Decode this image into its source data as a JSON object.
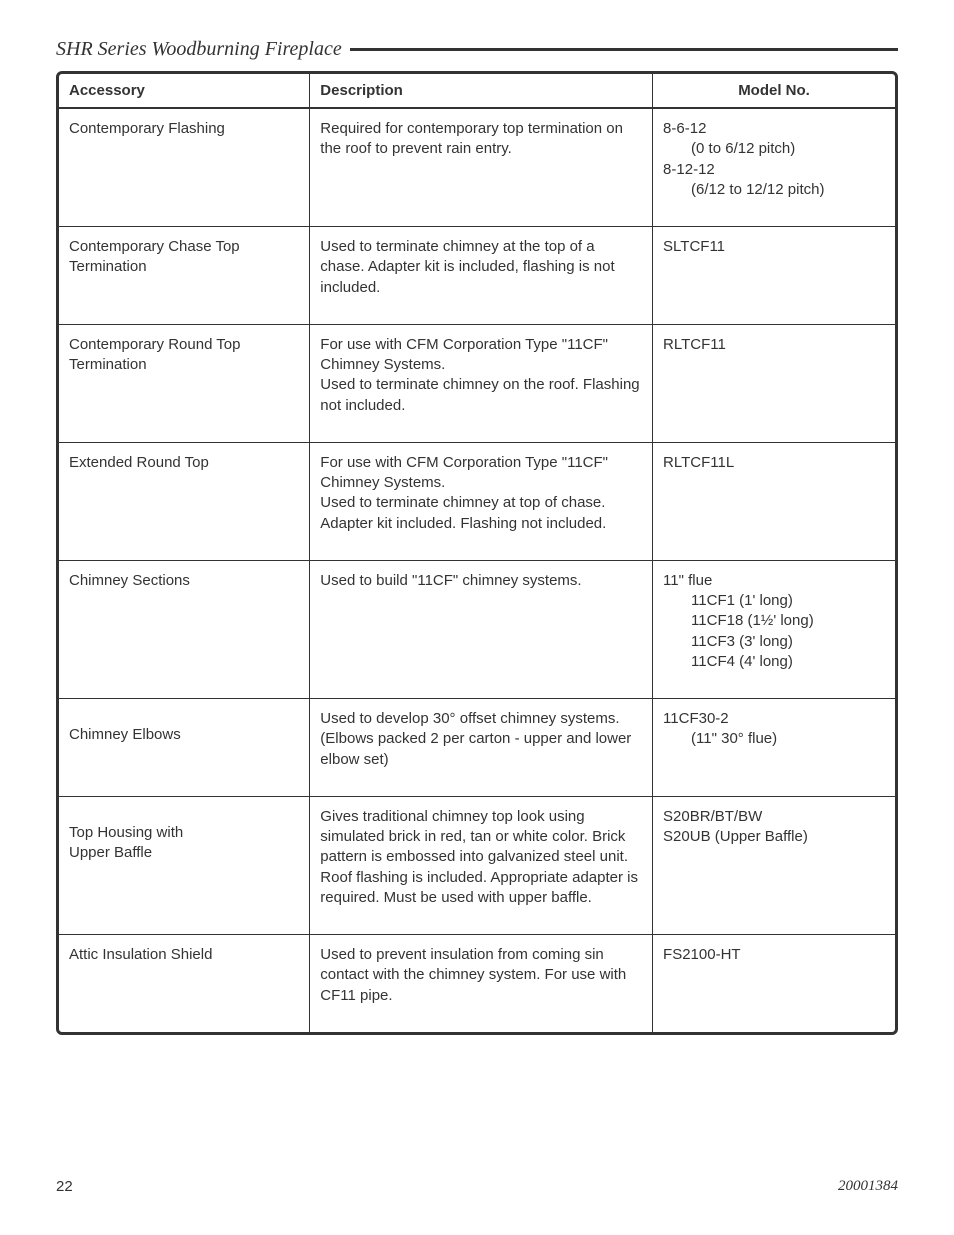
{
  "header": {
    "title": "SHR Series Woodburning Fireplace"
  },
  "table": {
    "columns": {
      "accessory": "Accessory",
      "description": "Description",
      "model": "Model No."
    },
    "rows": [
      {
        "accessory": "Contemporary Flashing",
        "description": "Required for contemporary top termination on the roof to prevent rain entry.",
        "model_lines": [
          {
            "text": "8-6-12",
            "indent": false
          },
          {
            "text": "(0 to 6/12 pitch)",
            "indent": true
          },
          {
            "text": "8-12-12",
            "indent": false
          },
          {
            "text": "(6/12 to 12/12 pitch)",
            "indent": true
          }
        ],
        "accessory_pad": false
      },
      {
        "accessory": "Contemporary Chase Top Termination",
        "description": "Used to terminate chimney at the top of a chase. Adapter kit is included, flashing is not included.",
        "model_lines": [
          {
            "text": "SLTCF11",
            "indent": false
          }
        ],
        "accessory_pad": false
      },
      {
        "accessory": "Contemporary Round Top Termination",
        "description": "For use with CFM Corporation Type \"11CF\" Chimney Systems.\nUsed to terminate chimney on the roof. Flashing not included.",
        "model_lines": [
          {
            "text": "RLTCF11",
            "indent": false
          }
        ],
        "accessory_pad": false
      },
      {
        "accessory": "Extended Round Top",
        "description": "For use with CFM Corporation Type \"11CF\" Chimney Systems.\nUsed to terminate chimney at top of chase. Adapter kit included. Flashing not included.",
        "model_lines": [
          {
            "text": "RLTCF11L",
            "indent": false
          }
        ],
        "accessory_pad": false
      },
      {
        "accessory": "Chimney Sections",
        "description": "Used to build \"11CF\" chimney systems.",
        "model_lines": [
          {
            "text": "11\" flue",
            "indent": false
          },
          {
            "text": "11CF1 (1' long)",
            "indent": true
          },
          {
            "text": "11CF18 (1½' long)",
            "indent": true
          },
          {
            "text": "11CF3 (3' long)",
            "indent": true
          },
          {
            "text": "11CF4 (4' long)",
            "indent": true
          }
        ],
        "accessory_pad": false
      },
      {
        "accessory": "Chimney Elbows",
        "description": "Used to develop 30° offset chimney systems. (Elbows packed 2 per carton - upper and lower elbow set)",
        "model_lines": [
          {
            "text": "11CF30-2",
            "indent": false
          },
          {
            "text": "(11\" 30° flue)",
            "indent": true
          }
        ],
        "accessory_pad": true
      },
      {
        "accessory": "Top Housing with\nUpper Baffle",
        "description": "Gives traditional chimney top look using simulated brick in red, tan or white color. Brick pattern is embossed into galvanized steel unit. Roof flashing is included. Appropriate adapter is required. Must be used with upper baffle.",
        "model_lines": [
          {
            "text": "S20BR/BT/BW",
            "indent": false
          },
          {
            "text": "S20UB (Upper Baffle)",
            "indent": false
          }
        ],
        "accessory_pad": true
      },
      {
        "accessory": "Attic Insulation Shield",
        "description": "Used to prevent insulation from coming sin contact with the chimney system. For use with CF11 pipe.",
        "model_lines": [
          {
            "text": "FS2100-HT",
            "indent": false
          }
        ],
        "accessory_pad": false
      }
    ]
  },
  "footer": {
    "page_number": "22",
    "doc_number": "20001384"
  }
}
